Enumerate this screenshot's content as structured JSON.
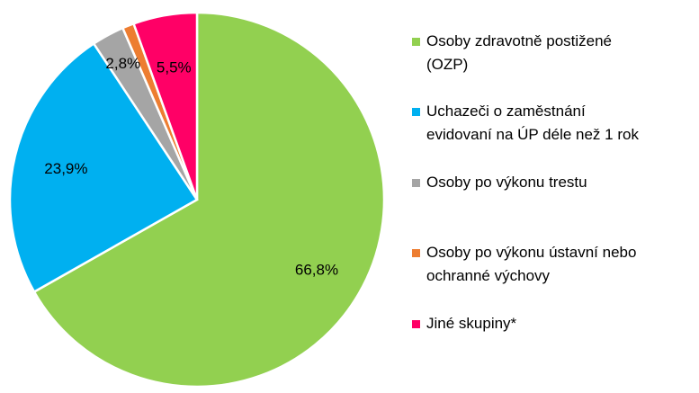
{
  "chart_data": {
    "type": "pie",
    "categories": [
      "Osoby zdravotně postižené (OZP)",
      "Uchazeči o zaměstnání evidovaní na ÚP déle než 1 rok",
      "Osoby po výkonu trestu",
      "Osoby po výkonu ústavní nebo ochranné výchovy",
      "Jiné skupiny*"
    ],
    "values": [
      66.8,
      23.9,
      2.8,
      1.0,
      5.5
    ],
    "data_labels": [
      "66,8%",
      "23,9%",
      "2,8%",
      "",
      "5,5%"
    ],
    "colors": [
      "#92d050",
      "#00b0f0",
      "#a5a5a5",
      "#ed7d31",
      "#ff0066"
    ],
    "legend_placement": "right",
    "legend": [
      {
        "lines": [
          "Osoby zdravotně postižené",
          "(OZP)"
        ],
        "color": "#92d050"
      },
      {
        "lines": [
          "Uchazeči o zaměstnání",
          "evidovaní na ÚP déle než 1 rok"
        ],
        "color": "#00b0f0"
      },
      {
        "lines": [
          "Osoby po výkonu trestu"
        ],
        "color": "#a5a5a5"
      },
      {
        "lines": [
          "Osoby po výkonu ústavní nebo",
          "ochranné výchovy"
        ],
        "color": "#ed7d31"
      },
      {
        "lines": [
          "Jiné skupiny*"
        ],
        "color": "#ff0066"
      }
    ]
  }
}
